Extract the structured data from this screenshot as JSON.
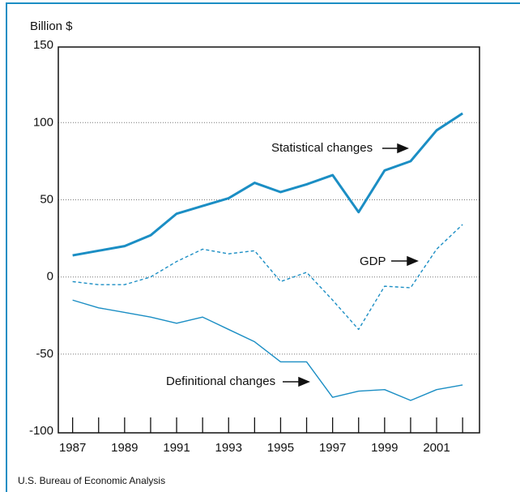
{
  "chart_data": {
    "type": "line",
    "ylabel": "Billion $",
    "source": "U.S. Bureau of Economic Analysis",
    "x": [
      1987,
      1988,
      1989,
      1990,
      1991,
      1992,
      1993,
      1994,
      1995,
      1996,
      1997,
      1998,
      1999,
      2000,
      2001,
      2002
    ],
    "series": [
      {
        "name": "Statistical changes",
        "color": "#1b8ec4",
        "style": "solid",
        "width": 3,
        "values": [
          14,
          17,
          20,
          27,
          41,
          46,
          51,
          61,
          55,
          60,
          66,
          42,
          69,
          75,
          95,
          106
        ]
      },
      {
        "name": "GDP",
        "color": "#1b8ec4",
        "style": "dashed",
        "width": 1.4,
        "values": [
          -3,
          -5,
          -5,
          0,
          10,
          18,
          15,
          17,
          -3,
          3,
          -15,
          -34,
          -6,
          -7,
          18,
          34
        ]
      },
      {
        "name": "Definitional changes",
        "color": "#1b8ec4",
        "style": "solid",
        "width": 1.4,
        "values": [
          -15,
          -20,
          -23,
          -26,
          -30,
          -26,
          -34,
          -42,
          -55,
          -55,
          -78,
          -74,
          -73,
          -80,
          -73,
          -70
        ]
      }
    ],
    "xlim": [
      1986.45,
      2002.65
    ],
    "xticks": [
      1987,
      1989,
      1991,
      1993,
      1995,
      1997,
      1999,
      2001
    ],
    "minor_xticks": [
      1988,
      1990,
      1992,
      1994,
      1996,
      1998,
      2000,
      2002
    ],
    "ylim": [
      -101,
      149
    ],
    "yticks": [
      -100,
      -50,
      0,
      50,
      100,
      150
    ],
    "grid": true
  }
}
